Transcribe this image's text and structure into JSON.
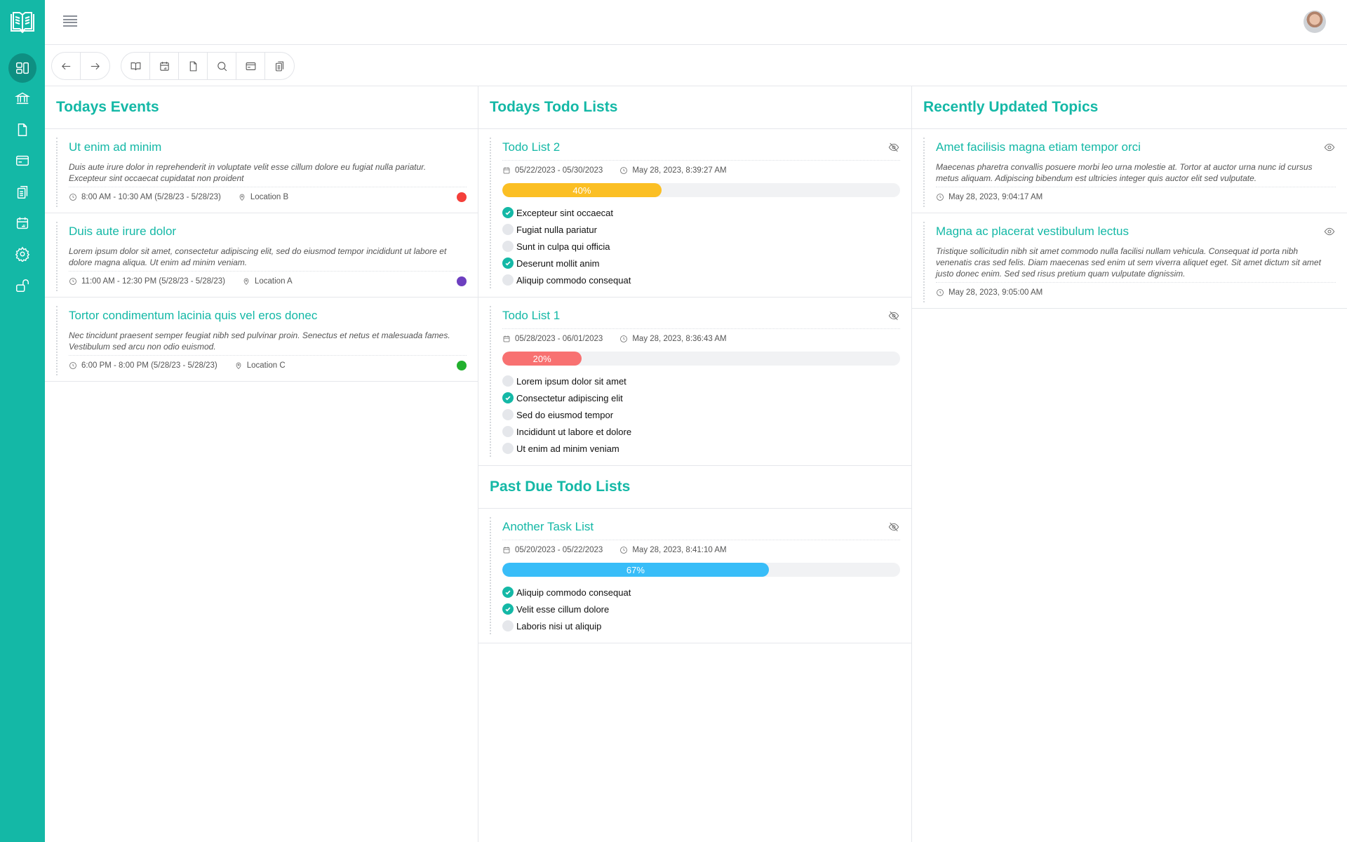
{
  "colors": {
    "brand": "#14b8a6",
    "sidebar_active": "#0e8f82"
  },
  "sidebar": {
    "items": [
      {
        "icon": "dashboard-icon",
        "active": true
      },
      {
        "icon": "bank-icon"
      },
      {
        "icon": "document-icon"
      },
      {
        "icon": "card-icon"
      },
      {
        "icon": "clipboard-icon"
      },
      {
        "icon": "calendar-icon"
      },
      {
        "icon": "settings-icon"
      },
      {
        "icon": "unlock-icon"
      }
    ]
  },
  "toolbar": {
    "nav": [
      "back-arrow-icon",
      "forward-arrow-icon"
    ],
    "tools": [
      "book-icon",
      "calendar-icon",
      "document-icon",
      "search-icon",
      "card-icon",
      "clipboard-icon"
    ]
  },
  "events": {
    "title": "Todays Events",
    "items": [
      {
        "title": "Ut enim ad minim",
        "desc": "Duis aute irure dolor in reprehenderit in voluptate velit esse cillum dolore eu fugiat nulla pariatur. Excepteur sint occaecat cupidatat non proident",
        "time": "8:00 AM - 10:30 AM (5/28/23 - 5/28/23)",
        "location": "Location B",
        "color": "#f43f3a"
      },
      {
        "title": "Duis aute irure dolor",
        "desc": "Lorem ipsum dolor sit amet, consectetur adipiscing elit, sed do eiusmod tempor incididunt ut labore et dolore magna aliqua. Ut enim ad minim veniam.",
        "time": "11:00 AM - 12:30 PM (5/28/23 - 5/28/23)",
        "location": "Location A",
        "color": "#6d3fc0"
      },
      {
        "title": "Tortor condimentum lacinia quis vel eros donec",
        "desc": "Nec tincidunt praesent semper feugiat nibh sed pulvinar proin. Senectus et netus et malesuada fames. Vestibulum sed arcu non odio euismod.",
        "time": "6:00 PM - 8:00 PM (5/28/23 - 5/28/23)",
        "location": "Location C",
        "color": "#22b02e"
      }
    ]
  },
  "todos": {
    "title": "Todays Todo Lists",
    "lists": [
      {
        "title": "Todo List 2",
        "dates": "05/22/2023 - 05/30/2023",
        "updated": "May 28, 2023, 8:39:27 AM",
        "progress": 40,
        "progress_label": "40%",
        "color": "#fbbf24",
        "tasks": [
          {
            "label": "Excepteur sint occaecat",
            "done": true
          },
          {
            "label": "Fugiat nulla pariatur",
            "done": false
          },
          {
            "label": "Sunt in culpa qui officia",
            "done": false
          },
          {
            "label": "Deserunt mollit anim",
            "done": true
          },
          {
            "label": "Aliquip commodo consequat",
            "done": false
          }
        ]
      },
      {
        "title": "Todo List 1",
        "dates": "05/28/2023 - 06/01/2023",
        "updated": "May 28, 2023, 8:36:43 AM",
        "progress": 20,
        "progress_label": "20%",
        "color": "#f87171",
        "tasks": [
          {
            "label": "Lorem ipsum dolor sit amet",
            "done": false
          },
          {
            "label": "Consectetur adipiscing elit",
            "done": true
          },
          {
            "label": "Sed do eiusmod tempor",
            "done": false
          },
          {
            "label": "Incididunt ut labore et dolore",
            "done": false
          },
          {
            "label": "Ut enim ad minim veniam",
            "done": false
          }
        ]
      }
    ]
  },
  "pastdue": {
    "title": "Past Due Todo Lists",
    "lists": [
      {
        "title": "Another Task List",
        "dates": "05/20/2023 - 05/22/2023",
        "updated": "May 28, 2023, 8:41:10 AM",
        "progress": 67,
        "progress_label": "67%",
        "color": "#38bdf8",
        "tasks": [
          {
            "label": "Aliquip commodo consequat",
            "done": true
          },
          {
            "label": "Velit esse cillum dolore",
            "done": true
          },
          {
            "label": "Laboris nisi ut aliquip",
            "done": false
          }
        ]
      }
    ]
  },
  "topics": {
    "title": "Recently Updated Topics",
    "items": [
      {
        "title": "Amet facilisis magna etiam tempor orci",
        "desc": "Maecenas pharetra convallis posuere morbi leo urna molestie at. Tortor at auctor urna nunc id cursus metus aliquam. Adipiscing bibendum est ultricies integer quis auctor elit sed vulputate.",
        "updated": "May 28, 2023, 9:04:17 AM"
      },
      {
        "title": "Magna ac placerat vestibulum lectus",
        "desc": "Tristique sollicitudin nibh sit amet commodo nulla facilisi nullam vehicula. Consequat id porta nibh venenatis cras sed felis. Diam maecenas sed enim ut sem viverra aliquet eget. Sit amet dictum sit amet justo donec enim. Sed sed risus pretium quam vulputate dignissim.",
        "updated": "May 28, 2023, 9:05:00 AM"
      }
    ]
  }
}
